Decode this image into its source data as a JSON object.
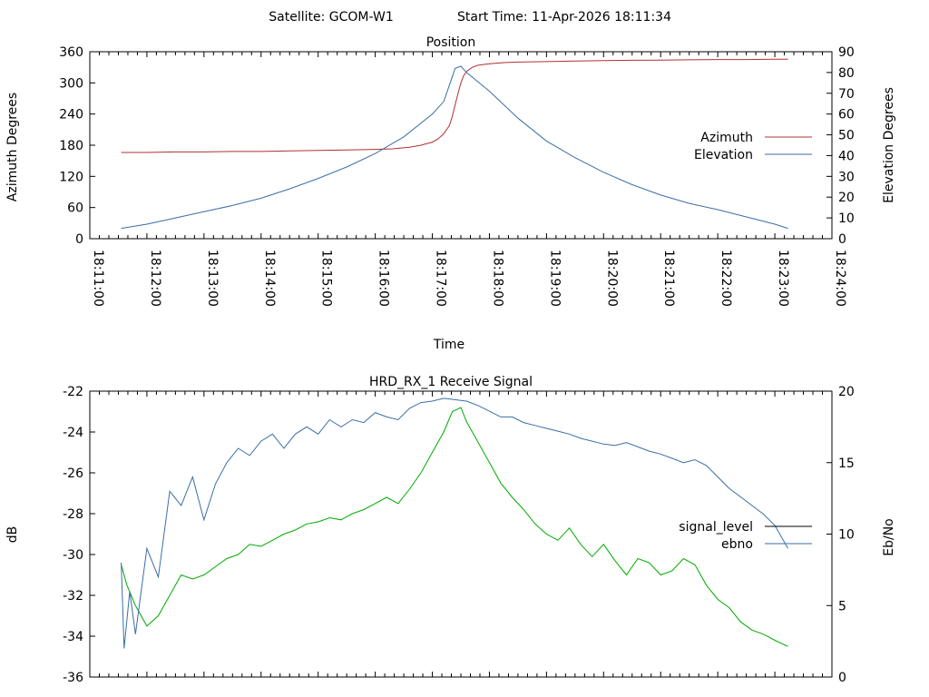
{
  "header": {
    "satellite": "Satellite: GCOM-W1",
    "start_time": "Start Time: 11-Apr-2026 18:11:34"
  },
  "chart_data": [
    {
      "type": "line",
      "title": "Position",
      "xlabel": "Time",
      "ylabel": "Azimuth Degrees",
      "y2label": "Elevation Degrees",
      "xlim": [
        "18:11:00",
        "18:24:00"
      ],
      "ylim": [
        0,
        360
      ],
      "y2lim": [
        0,
        90
      ],
      "x_ticks": [
        "18:11:00",
        "18:12:00",
        "18:13:00",
        "18:14:00",
        "18:15:00",
        "18:16:00",
        "18:17:00",
        "18:18:00",
        "18:19:00",
        "18:20:00",
        "18:21:00",
        "18:22:00",
        "18:23:00",
        "18:24:00"
      ],
      "y_ticks": [
        "0",
        "60",
        "120",
        "180",
        "240",
        "300",
        "360"
      ],
      "y2_ticks": [
        "0",
        "10",
        "20",
        "30",
        "40",
        "50",
        "60",
        "70",
        "80",
        "90"
      ],
      "legend_position": "right",
      "series": [
        {
          "name": "Azimuth",
          "axis": "y",
          "color": "#b03030",
          "x": [
            11.55,
            12.0,
            12.5,
            13.0,
            13.5,
            14.0,
            14.5,
            15.0,
            15.5,
            16.0,
            16.3,
            16.6,
            16.8,
            17.0,
            17.1,
            17.2,
            17.3,
            17.35,
            17.4,
            17.45,
            17.5,
            17.55,
            17.6,
            17.7,
            17.8,
            18.0,
            18.25,
            18.5,
            19.0,
            19.5,
            20.0,
            20.5,
            21.0,
            21.5,
            22.0,
            22.5,
            23.0,
            23.23
          ],
          "values": [
            166,
            166,
            167,
            167,
            168,
            168,
            169,
            170,
            171,
            172,
            173,
            176,
            180,
            186,
            192,
            202,
            218,
            236,
            258,
            280,
            300,
            314,
            322,
            330,
            334,
            337,
            339,
            340,
            341,
            342,
            343,
            343.5,
            344,
            344.5,
            345,
            345,
            345.5,
            345.5
          ]
        },
        {
          "name": "Elevation",
          "axis": "y2",
          "color": "#3a6ea5",
          "x": [
            11.55,
            12.0,
            12.5,
            13.0,
            13.5,
            14.0,
            14.5,
            15.0,
            15.5,
            16.0,
            16.5,
            17.0,
            17.2,
            17.4,
            17.5,
            17.6,
            18.0,
            18.5,
            19.0,
            19.5,
            20.0,
            20.5,
            21.0,
            21.5,
            22.0,
            22.5,
            23.0,
            23.23
          ],
          "values": [
            5,
            7,
            10,
            13,
            16,
            19.5,
            24,
            29,
            34.5,
            41,
            49,
            60,
            66,
            82,
            83,
            80,
            71,
            58,
            47,
            39,
            32,
            26,
            21,
            17,
            14,
            10.5,
            7,
            5
          ]
        }
      ]
    },
    {
      "type": "line",
      "title": "HRD_RX_1 Receive Signal",
      "ylabel": "dB",
      "y2label": "Eb/No",
      "xlim": [
        "18:11:00",
        "18:24:00"
      ],
      "ylim": [
        -36,
        -22
      ],
      "y2lim": [
        0,
        20
      ],
      "y_ticks": [
        "-22",
        "-24",
        "-26",
        "-28",
        "-30",
        "-32",
        "-34",
        "-36"
      ],
      "y2_ticks": [
        "0",
        "5",
        "10",
        "15",
        "20"
      ],
      "legend_position": "right",
      "series": [
        {
          "name": "signal_level",
          "axis": "y",
          "color": "#00aa00",
          "line_color_legend": "#000000",
          "x": [
            11.55,
            11.65,
            11.8,
            12.0,
            12.2,
            12.4,
            12.6,
            12.8,
            13.0,
            13.2,
            13.4,
            13.6,
            13.8,
            14.0,
            14.2,
            14.4,
            14.6,
            14.8,
            15.0,
            15.2,
            15.4,
            15.6,
            15.8,
            16.0,
            16.2,
            16.4,
            16.6,
            16.8,
            17.0,
            17.2,
            17.35,
            17.5,
            17.6,
            17.8,
            18.0,
            18.2,
            18.4,
            18.6,
            18.8,
            19.0,
            19.2,
            19.4,
            19.6,
            19.8,
            20.0,
            20.2,
            20.4,
            20.6,
            20.8,
            21.0,
            21.2,
            21.4,
            21.6,
            21.8,
            22.0,
            22.2,
            22.4,
            22.6,
            22.8,
            23.0,
            23.23
          ],
          "values": [
            -30.5,
            -31.5,
            -32.5,
            -33.5,
            -33,
            -32,
            -31,
            -31.2,
            -31,
            -30.6,
            -30.2,
            -30,
            -29.5,
            -29.6,
            -29.3,
            -29,
            -28.8,
            -28.5,
            -28.4,
            -28.2,
            -28.3,
            -28,
            -27.8,
            -27.5,
            -27.2,
            -27.5,
            -26.8,
            -26,
            -25,
            -24,
            -23,
            -22.8,
            -23.5,
            -24.5,
            -25.5,
            -26.5,
            -27.2,
            -27.8,
            -28.5,
            -29,
            -29.3,
            -28.7,
            -29.5,
            -30.1,
            -29.5,
            -30.3,
            -31,
            -30.2,
            -30.4,
            -31,
            -30.8,
            -30.2,
            -30.5,
            -31.5,
            -32.2,
            -32.6,
            -33.3,
            -33.7,
            -33.9,
            -34.2,
            -34.5
          ]
        },
        {
          "name": "ebno",
          "axis": "y2",
          "color": "#3a6ea5",
          "x": [
            11.55,
            11.6,
            11.7,
            11.8,
            12.0,
            12.2,
            12.4,
            12.6,
            12.8,
            13.0,
            13.2,
            13.4,
            13.6,
            13.8,
            14.0,
            14.2,
            14.4,
            14.6,
            14.8,
            15.0,
            15.2,
            15.4,
            15.6,
            15.8,
            16.0,
            16.2,
            16.4,
            16.6,
            16.8,
            17.0,
            17.2,
            17.4,
            17.6,
            17.8,
            18.0,
            18.2,
            18.4,
            18.6,
            18.8,
            19.0,
            19.2,
            19.4,
            19.6,
            19.8,
            20.0,
            20.2,
            20.4,
            20.6,
            20.8,
            21.0,
            21.2,
            21.4,
            21.6,
            21.8,
            22.0,
            22.2,
            22.4,
            22.6,
            22.8,
            23.0,
            23.23
          ],
          "values": [
            8,
            2,
            6,
            3,
            9,
            7,
            13,
            12,
            14,
            11,
            13.5,
            15,
            16,
            15.5,
            16.5,
            17,
            16,
            17,
            17.5,
            17,
            18,
            17.5,
            18,
            17.8,
            18.5,
            18.2,
            18,
            18.8,
            19.2,
            19.3,
            19.5,
            19.4,
            19.3,
            19,
            18.6,
            18.2,
            18.2,
            17.8,
            17.6,
            17.4,
            17.2,
            17,
            16.7,
            16.5,
            16.3,
            16.2,
            16.4,
            16.1,
            15.8,
            15.6,
            15.3,
            15,
            15.2,
            14.8,
            14,
            13.2,
            12.6,
            12,
            11.4,
            10.6,
            9
          ]
        }
      ]
    }
  ]
}
